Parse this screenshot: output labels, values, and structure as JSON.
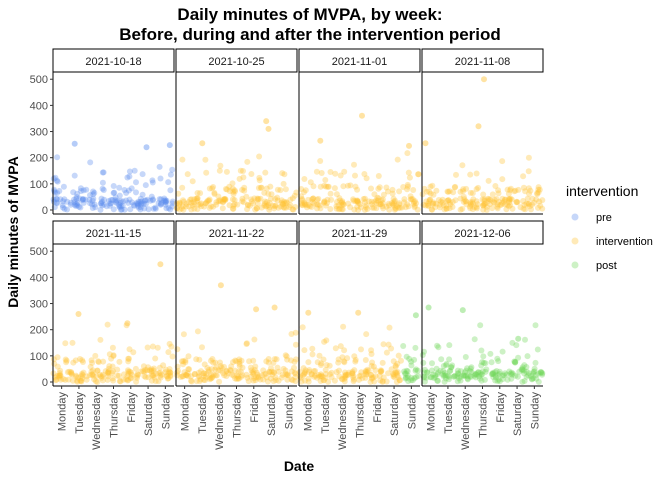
{
  "chart_data": {
    "type": "scatter",
    "title": "Daily minutes of MVPA, by week:",
    "subtitle": "Before, during and after the intervention period",
    "xlabel": "Date",
    "ylabel": "Daily minutes of MVPA",
    "ylim": [
      0,
      520
    ],
    "y_ticks": [
      0,
      100,
      200,
      300,
      400,
      500
    ],
    "x_categories": [
      "Monday",
      "Tuesday",
      "Wednesday",
      "Thursday",
      "Friday",
      "Saturday",
      "Sunday"
    ],
    "grid": false,
    "legend": {
      "title": "intervention",
      "placement": "right",
      "items": [
        {
          "label": "pre",
          "color": "#5b8def"
        },
        {
          "label": "intervention",
          "color": "#ffc233"
        },
        {
          "label": "post",
          "color": "#6fd65a"
        }
      ]
    },
    "panels": [
      {
        "week": "2021-10-18",
        "phase_by_day": [
          "pre",
          "pre",
          "pre",
          "pre",
          "pre",
          "pre",
          "pre"
        ],
        "highlights": [
          {
            "day": "Tuesday",
            "value": 253,
            "phase": "pre"
          },
          {
            "day": "Sunday",
            "value": 248,
            "phase": "pre"
          },
          {
            "day": "Saturday",
            "value": 240,
            "phase": "pre"
          }
        ]
      },
      {
        "week": "2021-10-25",
        "phase_by_day": [
          "intervention",
          "intervention",
          "intervention",
          "intervention",
          "intervention",
          "intervention",
          "intervention"
        ],
        "highlights": [
          {
            "day": "Saturday",
            "value": 340,
            "phase": "intervention"
          },
          {
            "day": "Saturday",
            "value": 310,
            "phase": "intervention"
          },
          {
            "day": "Tuesday",
            "value": 255,
            "phase": "intervention"
          }
        ]
      },
      {
        "week": "2021-11-01",
        "phase_by_day": [
          "intervention",
          "intervention",
          "intervention",
          "intervention",
          "intervention",
          "intervention",
          "intervention"
        ],
        "highlights": [
          {
            "day": "Thursday",
            "value": 360,
            "phase": "intervention"
          },
          {
            "day": "Tuesday",
            "value": 265,
            "phase": "intervention"
          },
          {
            "day": "Sunday",
            "value": 245,
            "phase": "intervention"
          }
        ]
      },
      {
        "week": "2021-11-08",
        "phase_by_day": [
          "intervention",
          "intervention",
          "intervention",
          "intervention",
          "intervention",
          "intervention",
          "intervention"
        ],
        "highlights": [
          {
            "day": "Thursday",
            "value": 500,
            "phase": "intervention"
          },
          {
            "day": "Thursday",
            "value": 320,
            "phase": "intervention"
          },
          {
            "day": "Monday",
            "value": 255,
            "phase": "intervention"
          }
        ]
      },
      {
        "week": "2021-11-15",
        "phase_by_day": [
          "intervention",
          "intervention",
          "intervention",
          "intervention",
          "intervention",
          "intervention",
          "intervention"
        ],
        "highlights": [
          {
            "day": "Sunday",
            "value": 450,
            "phase": "intervention"
          },
          {
            "day": "Tuesday",
            "value": 260,
            "phase": "intervention"
          },
          {
            "day": "Friday",
            "value": 225,
            "phase": "intervention"
          }
        ]
      },
      {
        "week": "2021-11-22",
        "phase_by_day": [
          "intervention",
          "intervention",
          "intervention",
          "intervention",
          "intervention",
          "intervention",
          "intervention"
        ],
        "highlights": [
          {
            "day": "Wednesday",
            "value": 370,
            "phase": "intervention"
          },
          {
            "day": "Saturday",
            "value": 285,
            "phase": "intervention"
          },
          {
            "day": "Friday",
            "value": 278,
            "phase": "intervention"
          }
        ]
      },
      {
        "week": "2021-11-29",
        "phase_by_day": [
          "intervention",
          "intervention",
          "intervention",
          "intervention",
          "intervention",
          "intervention",
          "post"
        ],
        "highlights": [
          {
            "day": "Monday",
            "value": 265,
            "phase": "intervention"
          },
          {
            "day": "Thursday",
            "value": 265,
            "phase": "intervention"
          },
          {
            "day": "Sunday",
            "value": 255,
            "phase": "post"
          }
        ]
      },
      {
        "week": "2021-12-06",
        "phase_by_day": [
          "post",
          "post",
          "post",
          "post",
          "post",
          "post",
          "post"
        ],
        "highlights": [
          {
            "day": "Monday",
            "value": 285,
            "phase": "post"
          },
          {
            "day": "Wednesday",
            "value": 275,
            "phase": "post"
          },
          {
            "day": "Saturday",
            "value": 165,
            "phase": "post"
          }
        ]
      }
    ]
  }
}
